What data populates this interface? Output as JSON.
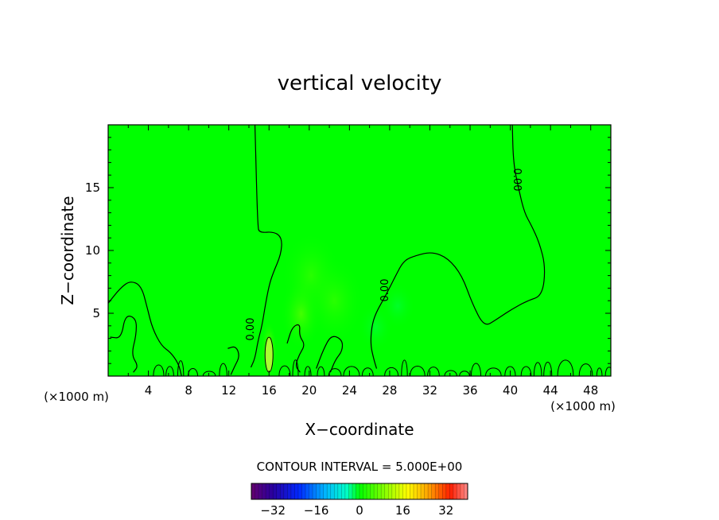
{
  "chart_data": {
    "type": "heatmap",
    "title": "vertical velocity",
    "xlabel": "X−coordinate",
    "ylabel": "Z−coordinate",
    "x_unit": "(×1000 m)",
    "y_unit": "(×1000 m)",
    "xlim": [
      0,
      50
    ],
    "ylim": [
      0,
      20
    ],
    "x_ticks": [
      4,
      8,
      12,
      16,
      20,
      24,
      28,
      32,
      36,
      40,
      44,
      48
    ],
    "y_ticks": [
      5,
      10,
      15
    ],
    "contour_interval_label": "CONTOUR INTERVAL = 5.000E+00",
    "contour_label": "0.00",
    "colorbar": {
      "range": [
        -40,
        40
      ],
      "ticks": [
        -32,
        -16,
        0,
        16,
        32
      ],
      "tick_labels": [
        "−32",
        "−16",
        "0",
        "16",
        "32"
      ]
    },
    "field_background_color": "#00ff00",
    "contour_color": "#000000",
    "zero_contours": [
      [
        [
          14.6,
          20
        ],
        [
          14.7,
          17
        ],
        [
          14.8,
          14
        ],
        [
          14.9,
          12
        ],
        [
          15.0,
          11.4
        ],
        [
          16.5,
          11.5
        ],
        [
          17.3,
          11
        ],
        [
          17.2,
          9.7
        ],
        [
          16.4,
          8.2
        ],
        [
          16.0,
          7.2
        ],
        [
          15.6,
          5.5
        ],
        [
          15.3,
          4
        ],
        [
          14.9,
          2.8
        ],
        [
          14.6,
          1.4
        ],
        [
          14.2,
          0.7
        ]
      ],
      [
        [
          40.2,
          20
        ],
        [
          40.3,
          17
        ],
        [
          40.8,
          15
        ],
        [
          41.4,
          13
        ],
        [
          42.1,
          12
        ],
        [
          42.9,
          10.6
        ],
        [
          43.5,
          8.7
        ],
        [
          43.2,
          6.4
        ],
        [
          41.7,
          6.0
        ],
        [
          40.1,
          5.3
        ],
        [
          38.6,
          4.5
        ],
        [
          37.4,
          3.9
        ],
        [
          36.2,
          5.8
        ],
        [
          35.2,
          8.0
        ],
        [
          33.8,
          9.4
        ],
        [
          32.2,
          9.9
        ],
        [
          30.6,
          9.6
        ],
        [
          29.4,
          9.2
        ],
        [
          28.6,
          8.0
        ],
        [
          27.6,
          6.4
        ],
        [
          26.6,
          5.0
        ],
        [
          26.2,
          3.9
        ],
        [
          26.1,
          2.5
        ],
        [
          26.4,
          1.4
        ],
        [
          26.7,
          0.6
        ]
      ],
      [
        [
          0,
          5.8
        ],
        [
          1.2,
          7.0
        ],
        [
          2.2,
          7.6
        ],
        [
          3.3,
          7.2
        ],
        [
          3.9,
          5.4
        ],
        [
          4.4,
          3.8
        ],
        [
          5.3,
          2.4
        ],
        [
          6.2,
          1.9
        ],
        [
          7.0,
          1.0
        ],
        [
          7.3,
          0
        ]
      ],
      [
        [
          0.2,
          3.1
        ],
        [
          1.3,
          3.0
        ],
        [
          1.7,
          4.9
        ],
        [
          2.8,
          4.6
        ],
        [
          2.8,
          3.3
        ],
        [
          2.3,
          1.7
        ],
        [
          3.0,
          0.8
        ],
        [
          2.5,
          0.3
        ]
      ],
      [
        [
          17.8,
          2.6
        ],
        [
          18.3,
          3.9
        ],
        [
          19.1,
          4.2
        ],
        [
          19.0,
          3.2
        ],
        [
          19.6,
          2.5
        ],
        [
          19.0,
          1.7
        ],
        [
          18.6,
          0.8
        ],
        [
          19.1,
          0.3
        ]
      ],
      [
        [
          20.7,
          0.6
        ],
        [
          21.4,
          2.1
        ],
        [
          22.2,
          3.3
        ],
        [
          23.3,
          2.9
        ],
        [
          23.3,
          2.0
        ],
        [
          22.6,
          1.3
        ],
        [
          22.1,
          0.3
        ]
      ],
      [
        [
          11.9,
          2.2
        ],
        [
          12.7,
          2.4
        ],
        [
          13.1,
          1.6
        ],
        [
          12.6,
          0.8
        ],
        [
          12.2,
          0.1
        ]
      ]
    ],
    "warm_patches": [
      {
        "x": 16.0,
        "y": 2.0,
        "value": 5
      },
      {
        "x": 19.2,
        "y": 5.0,
        "value": 2
      },
      {
        "x": 20.2,
        "y": 8.0,
        "value": 1
      },
      {
        "x": 22.5,
        "y": 6.0,
        "value": 1
      }
    ],
    "cool_patches": [
      {
        "x": 28.8,
        "y": 5.6,
        "value": -1
      },
      {
        "x": 26.6,
        "y": 3.9,
        "value": -1
      }
    ]
  }
}
